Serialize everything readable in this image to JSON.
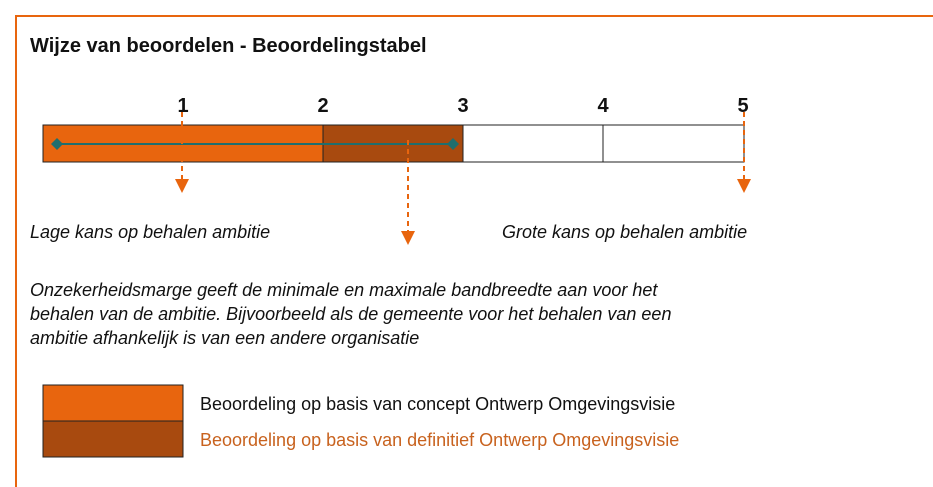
{
  "title": "Wijze van beoordelen - Beoordelingstabel",
  "scale": [
    1,
    2,
    3,
    4,
    5
  ],
  "low_label": "Lage kans op behalen ambitie",
  "high_label": "Grote kans op behalen ambitie",
  "note_lines": [
    "Onzekerheidsmarge geeft de minimale en maximale bandbreedte aan voor het",
    "behalen van de ambitie. Bijvoorbeeld als de gemeente voor het behalen van een",
    "ambitie afhankelijk is van een andere organisatie"
  ],
  "legend": [
    {
      "label": "Beoordeling op basis van concept Ontwerp Omgevingsvisie",
      "color": "#e8650e"
    },
    {
      "label": "Beoordeling op basis van definitief Ontwerp Omgevingsvisie",
      "color": "#a84a0f"
    }
  ]
}
